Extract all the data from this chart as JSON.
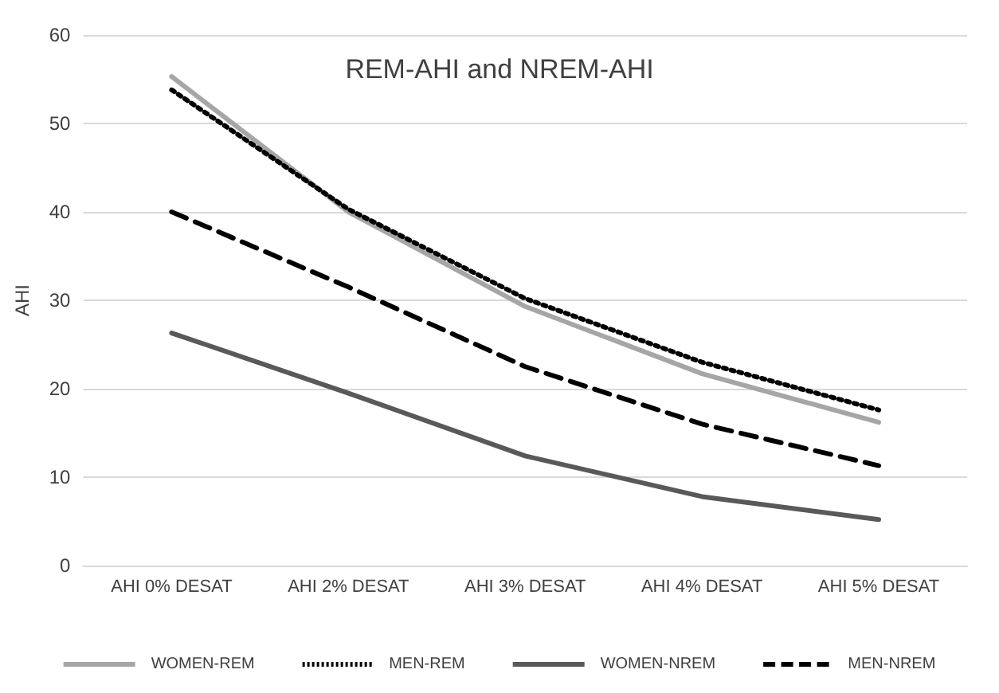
{
  "chart_data": {
    "type": "line",
    "title": "REM-AHI and NREM-AHI",
    "ylabel": "AHI",
    "categories": [
      "AHI 0% DESAT",
      "AHI 2% DESAT",
      "AHI 3% DESAT",
      "AHI 4% DESAT",
      "AHI 5% DESAT"
    ],
    "series": [
      {
        "name": "WOMEN-REM",
        "color": "#a6a6a6",
        "line_style": "solid",
        "values": [
          55.3,
          40,
          29.3,
          21.7,
          16.2
        ]
      },
      {
        "name": "MEN-REM",
        "color": "#000000",
        "line_style": "dotted",
        "values": [
          53.8,
          40.3,
          30.2,
          23,
          17.6
        ]
      },
      {
        "name": "WOMEN-NREM",
        "color": "#595959",
        "line_style": "solid",
        "values": [
          26.3,
          19.5,
          12.4,
          7.8,
          5.2
        ]
      },
      {
        "name": "MEN-NREM",
        "color": "#000000",
        "line_style": "dashed",
        "values": [
          40,
          31.5,
          22.5,
          16,
          11.3
        ]
      }
    ],
    "ylim": [
      0,
      60
    ],
    "yticks": [
      0,
      10,
      20,
      30,
      40,
      50,
      60
    ],
    "grid": "y",
    "legend": "bottom",
    "marker": "none"
  }
}
